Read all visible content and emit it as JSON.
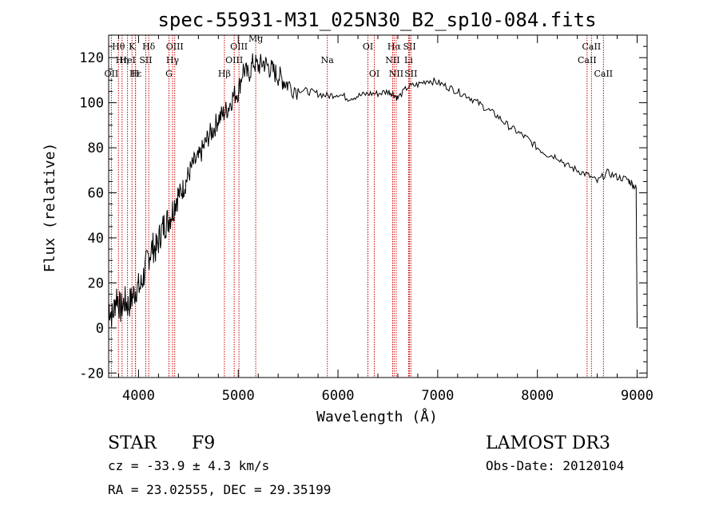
{
  "chart_data": {
    "type": "line",
    "title": "spec-55931-M31_025N30_B2_sp10-084.fits",
    "xlabel": "Wavelength (Å)",
    "ylabel": "Flux (relative)",
    "xlim": [
      3700,
      9100
    ],
    "ylim": [
      -22,
      130
    ],
    "x_ticks": [
      4000,
      5000,
      6000,
      7000,
      8000,
      9000
    ],
    "y_ticks": [
      -20,
      0,
      20,
      40,
      60,
      80,
      100,
      120
    ],
    "line_color": "#000000",
    "marker_color": "#cc0000",
    "series": [
      {
        "name": "flux",
        "x": [
          3700,
          3740,
          3780,
          3820,
          3860,
          3900,
          3940,
          3980,
          4020,
          4060,
          4100,
          4140,
          4180,
          4220,
          4260,
          4300,
          4340,
          4380,
          4420,
          4460,
          4500,
          4550,
          4600,
          4650,
          4700,
          4750,
          4800,
          4850,
          4900,
          4950,
          5000,
          5050,
          5100,
          5150,
          5200,
          5250,
          5300,
          5350,
          5400,
          5450,
          5500,
          5600,
          5700,
          5800,
          5900,
          6000,
          6100,
          6200,
          6300,
          6400,
          6500,
          6550,
          6600,
          6700,
          6800,
          6900,
          7000,
          7100,
          7200,
          7300,
          7400,
          7500,
          7600,
          7700,
          7800,
          7900,
          8000,
          8100,
          8200,
          8300,
          8400,
          8500,
          8600,
          8700,
          8800,
          8900,
          8950,
          8990,
          9000
        ],
        "y": [
          10,
          5,
          15,
          8,
          12,
          10,
          14,
          18,
          18,
          25,
          32,
          36,
          35,
          42,
          46,
          48,
          52,
          58,
          60,
          63,
          68,
          73,
          75,
          80,
          85,
          88,
          93,
          95,
          98,
          103,
          105,
          115,
          112,
          118,
          116,
          118,
          116,
          114,
          112,
          110,
          108,
          106,
          105,
          104,
          103,
          104,
          102,
          103,
          104,
          104,
          105,
          104,
          102,
          107,
          108,
          110,
          109,
          107,
          105,
          103,
          100,
          97,
          94,
          90,
          87,
          84,
          80,
          77,
          76,
          72,
          70,
          68,
          65,
          69,
          67,
          66,
          64,
          62,
          0
        ]
      }
    ],
    "line_markers": [
      {
        "label": "Hθ",
        "x": 3798,
        "row": 1
      },
      {
        "label": "OII",
        "x": 3727,
        "row": 3
      },
      {
        "label": "Hη",
        "x": 3835,
        "row": 2
      },
      {
        "label": "K",
        "x": 3934,
        "row": 1
      },
      {
        "label": "HeI",
        "x": 3889,
        "row": 2
      },
      {
        "label": "Hε",
        "x": 3970,
        "row": 3
      },
      {
        "label": "Hδ",
        "x": 4102,
        "row": 1
      },
      {
        "label": "SII",
        "x": 4072,
        "row": 2
      },
      {
        "label": "H",
        "x": 3968,
        "row": 3
      },
      {
        "label": "OIII",
        "x": 4363,
        "row": 1
      },
      {
        "label": "Hγ",
        "x": 4341,
        "row": 2
      },
      {
        "label": "G",
        "x": 4305,
        "row": 3
      },
      {
        "label": "OIII",
        "x": 5007,
        "row": 1
      },
      {
        "label": "OIII",
        "x": 4959,
        "row": 2
      },
      {
        "label": "Hβ",
        "x": 4861,
        "row": 3
      },
      {
        "label": "Mg",
        "x": 5175,
        "row": 0
      },
      {
        "label": "Na",
        "x": 5893,
        "row": 2
      },
      {
        "label": "OI",
        "x": 6300,
        "row": 1
      },
      {
        "label": "OI",
        "x": 6364,
        "row": 3
      },
      {
        "label": "Hα",
        "x": 6563,
        "row": 1
      },
      {
        "label": "NII",
        "x": 6548,
        "row": 2
      },
      {
        "label": "NII",
        "x": 6584,
        "row": 3
      },
      {
        "label": "SII",
        "x": 6717,
        "row": 1
      },
      {
        "label": "Li",
        "x": 6708,
        "row": 2
      },
      {
        "label": "SII",
        "x": 6731,
        "row": 3
      },
      {
        "label": "CaII",
        "x": 8542,
        "row": 1
      },
      {
        "label": "CaII",
        "x": 8498,
        "row": 2
      },
      {
        "label": "CaII",
        "x": 8662,
        "row": 3
      }
    ]
  },
  "info": {
    "class_label": "STAR",
    "subclass": "F9",
    "survey": "LAMOST DR3",
    "cz": "cz = -33.9 ± 4.3 km/s",
    "obs_date": "Obs-Date: 20120104",
    "coords": "RA =  23.02555, DEC =  29.35199"
  }
}
